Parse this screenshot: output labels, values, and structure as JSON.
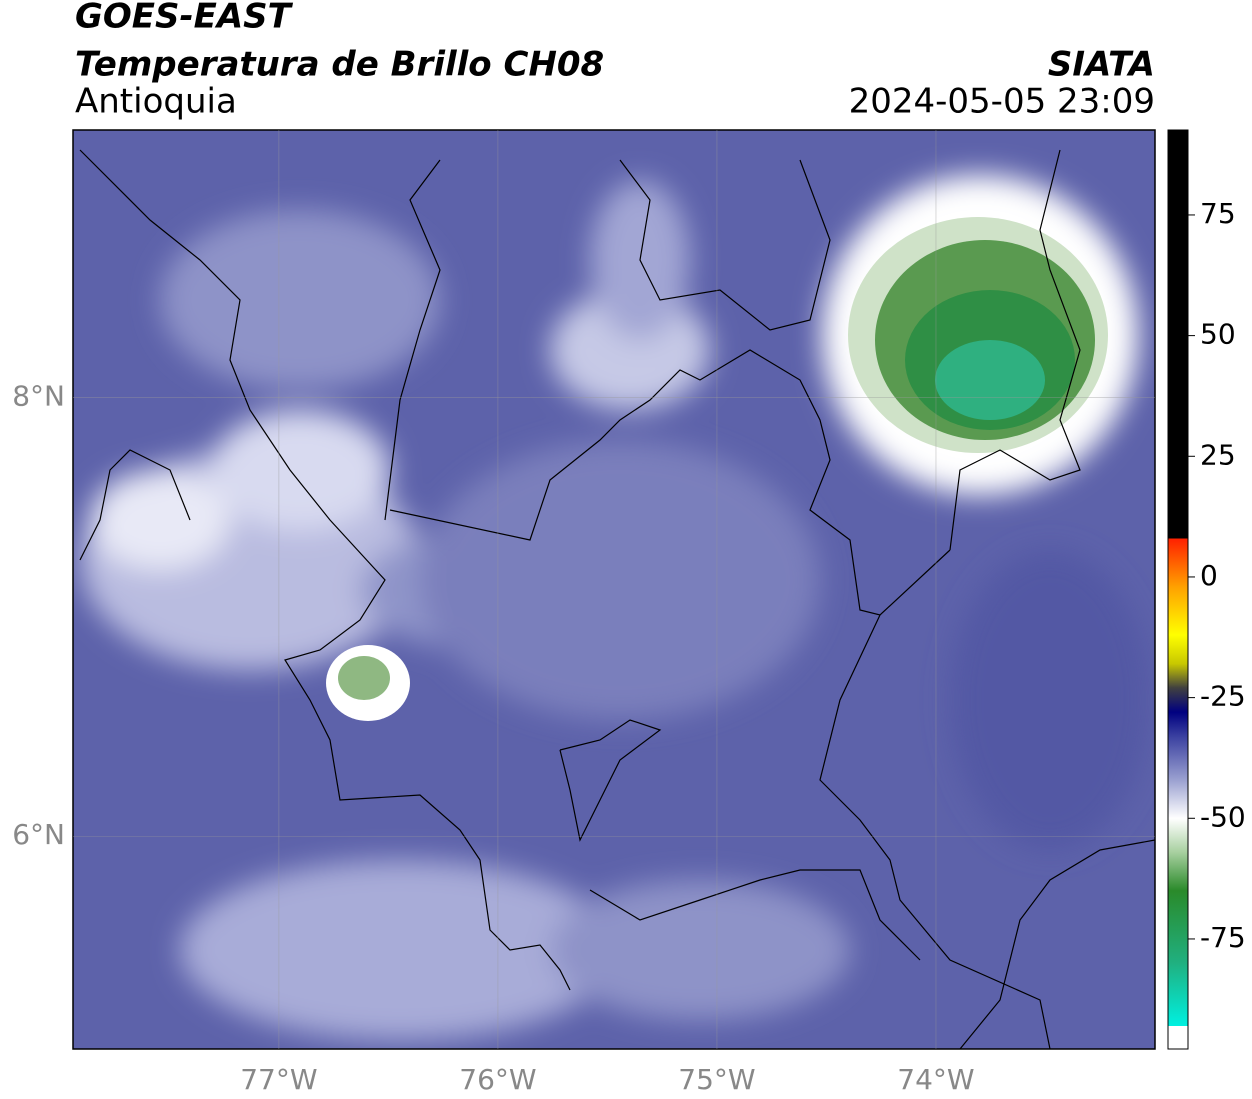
{
  "header": {
    "title": "GOES-EAST",
    "subtitle": "Temperatura de Brillo CH08",
    "region": "Antioquia",
    "source": "SIATA",
    "timestamp": "2024-05-05 23:09"
  },
  "map": {
    "xlim": [
      -77.94,
      -73.0
    ],
    "ylim": [
      5.03,
      9.22
    ],
    "xticks": [
      {
        "value": -77,
        "label": "77°W"
      },
      {
        "value": -76,
        "label": "76°W"
      },
      {
        "value": -75,
        "label": "75°W"
      },
      {
        "value": -74,
        "label": "74°W"
      }
    ],
    "yticks": [
      {
        "value": 8,
        "label": "8°N"
      },
      {
        "value": 6,
        "label": "6°N"
      }
    ],
    "grid": true
  },
  "colorbar": {
    "lim": [
      -97.8,
      92.6
    ],
    "ticks": [
      75,
      50,
      25,
      0,
      -25,
      -50,
      -75
    ],
    "stops": [
      {
        "value": -97.8,
        "color": "#ffffff"
      },
      {
        "value": -93,
        "color": "#ffffff"
      },
      {
        "value": -93,
        "color": "#00f0e0"
      },
      {
        "value": -80,
        "color": "#20b080"
      },
      {
        "value": -65,
        "color": "#2a8a2a"
      },
      {
        "value": -57,
        "color": "#a8d0a0"
      },
      {
        "value": -50,
        "color": "#ffffff"
      },
      {
        "value": -42,
        "color": "#9aa0d0"
      },
      {
        "value": -33,
        "color": "#3a40a0"
      },
      {
        "value": -28,
        "color": "#000080"
      },
      {
        "value": -23,
        "color": "#404040"
      },
      {
        "value": -18,
        "color": "#c8c800"
      },
      {
        "value": -12,
        "color": "#ffff00"
      },
      {
        "value": -2,
        "color": "#ffa000"
      },
      {
        "value": 8,
        "color": "#ff2000"
      },
      {
        "value": 8,
        "color": "#000000"
      },
      {
        "value": 92.6,
        "color": "#000000"
      }
    ]
  }
}
